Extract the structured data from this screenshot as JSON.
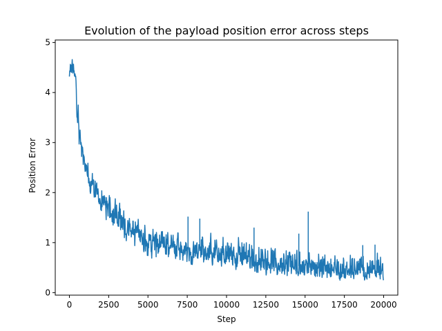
{
  "chart_data": {
    "type": "line",
    "title": "Evolution of the payload position error across steps",
    "xlabel": "Step",
    "ylabel": "Position Error",
    "xlim": [
      -900,
      20900
    ],
    "ylim": [
      -0.05,
      5.05
    ],
    "xticks": [
      0,
      2500,
      5000,
      7500,
      10000,
      12500,
      15000,
      17500,
      20000
    ],
    "yticks": [
      0,
      1,
      2,
      3,
      4,
      5
    ],
    "grid": false,
    "legend": "none",
    "series": [
      {
        "color": "#1f77b4",
        "x": [
          0,
          100,
          200,
          300,
          400,
          500,
          600,
          700,
          800,
          900,
          1000,
          1250,
          1500,
          1750,
          2000,
          2500,
          3000,
          3500,
          4000,
          4500,
          5000,
          6000,
          7000,
          8000,
          9000,
          10000,
          11000,
          12000,
          13000,
          14000,
          15000,
          16000,
          17000,
          18000,
          19000,
          20000
        ],
        "mean": [
          4.45,
          4.55,
          4.5,
          4.4,
          4.2,
          3.85,
          3.45,
          3.1,
          2.85,
          2.65,
          2.5,
          2.3,
          2.15,
          2.0,
          1.85,
          1.65,
          1.5,
          1.35,
          1.25,
          1.15,
          1.05,
          0.95,
          0.9,
          0.85,
          0.8,
          0.75,
          0.7,
          0.62,
          0.58,
          0.55,
          0.52,
          0.5,
          0.47,
          0.45,
          0.43,
          0.4
        ],
        "low": [
          4.2,
          4.3,
          4.3,
          4.1,
          3.8,
          3.3,
          2.9,
          2.65,
          2.5,
          2.3,
          2.15,
          1.95,
          1.8,
          1.6,
          1.5,
          1.3,
          1.15,
          1.0,
          0.85,
          0.75,
          0.65,
          0.58,
          0.55,
          0.5,
          0.5,
          0.45,
          0.38,
          0.32,
          0.28,
          0.26,
          0.24,
          0.22,
          0.2,
          0.19,
          0.18,
          0.2
        ],
        "high": [
          4.6,
          4.85,
          4.7,
          4.6,
          4.45,
          4.1,
          3.7,
          3.35,
          3.1,
          2.9,
          2.75,
          2.65,
          2.55,
          2.35,
          2.2,
          2.15,
          2.0,
          1.8,
          1.6,
          1.5,
          1.45,
          1.3,
          1.3,
          1.25,
          1.25,
          1.3,
          1.2,
          1.05,
          1.0,
          0.95,
          0.95,
          0.85,
          0.85,
          0.85,
          0.8,
          0.95
        ],
        "spikes": [
          [
            15200,
            1.62
          ],
          [
            14600,
            1.18
          ],
          [
            11750,
            1.3
          ],
          [
            8300,
            1.48
          ],
          [
            7550,
            1.52
          ],
          [
            19450,
            0.96
          ],
          [
            18670,
            0.95
          ]
        ]
      }
    ]
  }
}
